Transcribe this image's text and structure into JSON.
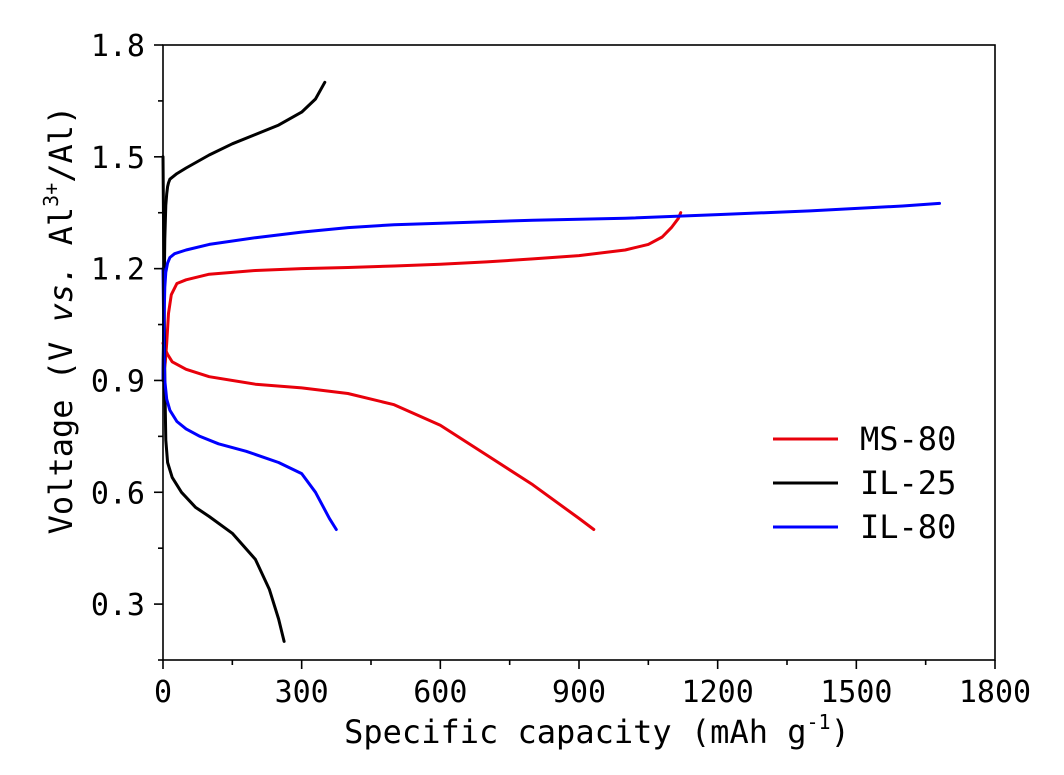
{
  "chart_data": {
    "type": "line",
    "xlabel": "Specific capacity (mAh g",
    "xlabel_sup": "-1",
    "xlabel_suffix": ")",
    "ylabel_prefix": "Voltage (V ",
    "ylabel_vs": "vs.",
    "ylabel_mid": " Al",
    "ylabel_sup": "3+",
    "ylabel_suffix": "/Al)",
    "xlim": [
      0,
      1800
    ],
    "ylim": [
      0.15,
      1.8
    ],
    "xticks": [
      0,
      300,
      600,
      900,
      1200,
      1500,
      1800
    ],
    "xtick_labels": [
      "0",
      "300",
      "600",
      "900",
      "1200",
      "1500",
      "1800"
    ],
    "yticks": [
      0.3,
      0.6,
      0.9,
      1.2,
      1.5,
      1.8
    ],
    "ytick_labels": [
      "0.3",
      "0.6",
      "0.9",
      "1.2",
      "1.5",
      "1.8"
    ],
    "grid": false,
    "legend_position": "bottom-right",
    "series": [
      {
        "name": "MS-80",
        "color": "#e8000b",
        "segments": [
          {
            "x": [
              0,
              5,
              8,
              12,
              18,
              30,
              50,
              100,
              200,
              300,
              400,
              500,
              600,
              700,
              800,
              900,
              1000,
              1050,
              1080,
              1100,
              1115,
              1120
            ],
            "y": [
              0.9,
              0.95,
              1.0,
              1.08,
              1.13,
              1.16,
              1.17,
              1.185,
              1.195,
              1.2,
              1.203,
              1.207,
              1.212,
              1.218,
              1.226,
              1.235,
              1.25,
              1.265,
              1.285,
              1.31,
              1.335,
              1.35
            ]
          },
          {
            "x": [
              0,
              3,
              6,
              10,
              20,
              50,
              100,
              200,
              300,
              400,
              500,
              600,
              700,
              800,
              900,
              932
            ],
            "y": [
              1.0,
              0.99,
              0.98,
              0.97,
              0.95,
              0.93,
              0.91,
              0.89,
              0.88,
              0.865,
              0.835,
              0.78,
              0.7,
              0.62,
              0.53,
              0.5
            ]
          }
        ]
      },
      {
        "name": "IL-25",
        "color": "#000000",
        "segments": [
          {
            "x": [
              0,
              2,
              4,
              6,
              8,
              10,
              12,
              15,
              20,
              30,
              50,
              100,
              150,
              200,
              250,
              300,
              330,
              350
            ],
            "y": [
              0.9,
              1.1,
              1.28,
              1.37,
              1.4,
              1.42,
              1.43,
              1.44,
              1.445,
              1.455,
              1.47,
              1.505,
              1.535,
              1.56,
              1.585,
              1.62,
              1.655,
              1.7
            ]
          },
          {
            "x": [
              0,
              2,
              4,
              6,
              10,
              20,
              40,
              70,
              100,
              150,
              200,
              230,
              250,
              262
            ],
            "y": [
              1.5,
              1.2,
              0.9,
              0.74,
              0.68,
              0.64,
              0.6,
              0.56,
              0.535,
              0.49,
              0.42,
              0.34,
              0.26,
              0.2
            ]
          }
        ]
      },
      {
        "name": "IL-80",
        "color": "#0000ff",
        "segments": [
          {
            "x": [
              0,
              2,
              4,
              6,
              10,
              15,
              25,
              50,
              100,
              200,
              300,
              400,
              500,
              600,
              800,
              1000,
              1200,
              1400,
              1600,
              1680
            ],
            "y": [
              0.9,
              1.05,
              1.15,
              1.19,
              1.215,
              1.23,
              1.24,
              1.25,
              1.265,
              1.283,
              1.298,
              1.31,
              1.318,
              1.322,
              1.33,
              1.335,
              1.345,
              1.355,
              1.368,
              1.375
            ]
          },
          {
            "x": [
              0,
              2,
              4,
              8,
              15,
              30,
              50,
              80,
              120,
              180,
              250,
              300,
              330,
              360,
              375
            ],
            "y": [
              1.2,
              1.0,
              0.9,
              0.85,
              0.82,
              0.79,
              0.77,
              0.75,
              0.73,
              0.71,
              0.68,
              0.65,
              0.6,
              0.53,
              0.5
            ]
          }
        ]
      }
    ]
  }
}
